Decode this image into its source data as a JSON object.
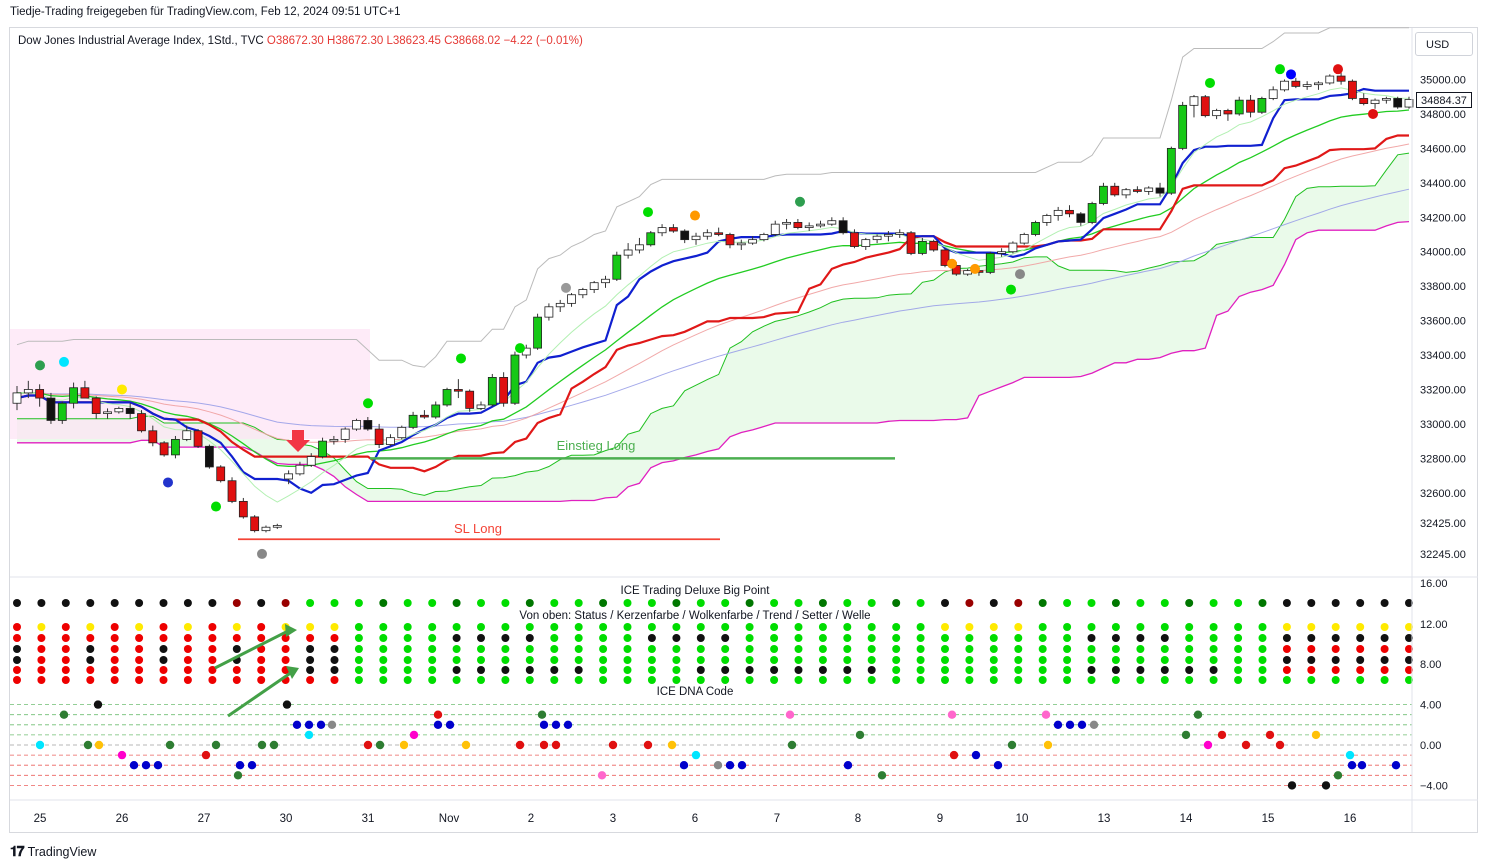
{
  "header": {
    "publisher": "Tiedje-Trading freigegeben für TradingView.com, Feb 12, 2024 09:51 UTC+1"
  },
  "legend": {
    "symbol": "Dow Jones Industrial Average Index, 1Std., TVC",
    "o": "O38672.30",
    "h": "H38672.30",
    "l": "L38623.45",
    "c": "C38668.02",
    "change": "−4.22 (−0.01%)"
  },
  "currency_button": "USD",
  "last_price_label": "34884.37",
  "brand": {
    "name": "TradingView",
    "logo": "tv-logo-icon"
  },
  "colors": {
    "bull": "#16c816",
    "bear": "#e01010",
    "tenkan": "#1020d0",
    "kijun": "#e01818",
    "cloud_bull": "#e6f9e6",
    "cloud_bear": "#fde3f5"
  },
  "chart_data": [
    {
      "type": "line",
      "title": "",
      "y_axis_ticks": [
        "35000.00",
        "34800.00",
        "34600.00",
        "34400.00",
        "34200.00",
        "34000.00",
        "33800.00",
        "33600.00",
        "33400.00",
        "33200.00",
        "33000.00",
        "32800.00",
        "32600.00",
        "32425.00",
        "32245.00"
      ],
      "x_axis_ticks": [
        "25",
        "26",
        "27",
        "30",
        "31",
        "Nov",
        "2",
        "3",
        "6",
        "7",
        "8",
        "9",
        "10",
        "13",
        "14",
        "15",
        "16"
      ],
      "ylim": [
        32150,
        35150
      ],
      "annotations": [
        {
          "text": "Einstieg Long",
          "y": 32800,
          "color": "#4caf50"
        },
        {
          "text": "SL Long",
          "y": 32330,
          "color": "#f44336"
        }
      ],
      "candles": [
        [
          33120,
          33220,
          33080,
          33180
        ],
        [
          33180,
          33250,
          33150,
          33200
        ],
        [
          33200,
          33230,
          33100,
          33150
        ],
        [
          33150,
          33180,
          33000,
          33020
        ],
        [
          33020,
          33130,
          33000,
          33120
        ],
        [
          33120,
          33240,
          33090,
          33210
        ],
        [
          33210,
          33250,
          33150,
          33150
        ],
        [
          33150,
          33160,
          33030,
          33060
        ],
        [
          33060,
          33090,
          33030,
          33070
        ],
        [
          33070,
          33100,
          33060,
          33090
        ],
        [
          33090,
          33120,
          33030,
          33060
        ],
        [
          33060,
          33080,
          32950,
          32960
        ],
        [
          32960,
          32990,
          32870,
          32890
        ],
        [
          32890,
          32900,
          32810,
          32820
        ],
        [
          32820,
          32930,
          32800,
          32910
        ],
        [
          32910,
          32990,
          32900,
          32960
        ],
        [
          32960,
          32970,
          32860,
          32870
        ],
        [
          32870,
          32880,
          32740,
          32750
        ],
        [
          32750,
          32760,
          32660,
          32670
        ],
        [
          32670,
          32690,
          32540,
          32550
        ],
        [
          32550,
          32570,
          32450,
          32460
        ],
        [
          32460,
          32470,
          32370,
          32380
        ],
        [
          32380,
          32410,
          32370,
          32400
        ],
        [
          32400,
          32420,
          32390,
          32410
        ],
        [
          32680,
          32730,
          32650,
          32710
        ],
        [
          32710,
          32780,
          32700,
          32760
        ],
        [
          32760,
          32830,
          32750,
          32810
        ],
        [
          32810,
          32920,
          32800,
          32900
        ],
        [
          32900,
          32930,
          32880,
          32910
        ],
        [
          32910,
          32980,
          32890,
          32970
        ],
        [
          32970,
          33030,
          32960,
          33020
        ],
        [
          33020,
          33040,
          32960,
          32970
        ],
        [
          32970,
          33000,
          32860,
          32880
        ],
        [
          32880,
          32940,
          32870,
          32920
        ],
        [
          32920,
          32990,
          32910,
          32980
        ],
        [
          32980,
          33070,
          32970,
          33050
        ],
        [
          33050,
          33080,
          33030,
          33040
        ],
        [
          33040,
          33130,
          33030,
          33110
        ],
        [
          33110,
          33210,
          33100,
          33200
        ],
        [
          33200,
          33260,
          33150,
          33190
        ],
        [
          33190,
          33200,
          33070,
          33090
        ],
        [
          33090,
          33130,
          33080,
          33110
        ],
        [
          33110,
          33290,
          33100,
          33270
        ],
        [
          33270,
          33300,
          33100,
          33120
        ],
        [
          33120,
          33420,
          33110,
          33400
        ],
        [
          33400,
          33460,
          33380,
          33440
        ],
        [
          33440,
          33640,
          33430,
          33620
        ],
        [
          33620,
          33700,
          33600,
          33680
        ],
        [
          33680,
          33720,
          33650,
          33700
        ],
        [
          33700,
          33760,
          33680,
          33750
        ],
        [
          33750,
          33790,
          33730,
          33780
        ],
        [
          33780,
          33830,
          33760,
          33820
        ],
        [
          33820,
          33860,
          33790,
          33840
        ],
        [
          33840,
          34000,
          33830,
          33980
        ],
        [
          33980,
          34050,
          33960,
          34010
        ],
        [
          34010,
          34080,
          33990,
          34040
        ],
        [
          34040,
          34120,
          34030,
          34110
        ],
        [
          34110,
          34160,
          34090,
          34140
        ],
        [
          34140,
          34160,
          34110,
          34120
        ],
        [
          34120,
          34130,
          34050,
          34070
        ],
        [
          34070,
          34110,
          34040,
          34090
        ],
        [
          34090,
          34130,
          34070,
          34110
        ],
        [
          34110,
          34140,
          34090,
          34100
        ],
        [
          34100,
          34110,
          34020,
          34040
        ],
        [
          34040,
          34070,
          34010,
          34050
        ],
        [
          34050,
          34090,
          34040,
          34070
        ],
        [
          34070,
          34110,
          34060,
          34100
        ],
        [
          34100,
          34180,
          34090,
          34160
        ],
        [
          34160,
          34190,
          34130,
          34170
        ],
        [
          34170,
          34190,
          34130,
          34140
        ],
        [
          34140,
          34170,
          34120,
          34150
        ],
        [
          34150,
          34180,
          34140,
          34160
        ],
        [
          34160,
          34200,
          34150,
          34180
        ],
        [
          34180,
          34200,
          34100,
          34110
        ],
        [
          34110,
          34130,
          34020,
          34030
        ],
        [
          34030,
          34080,
          34010,
          34070
        ],
        [
          34070,
          34100,
          34050,
          34090
        ],
        [
          34090,
          34120,
          34060,
          34100
        ],
        [
          34100,
          34130,
          34080,
          34110
        ],
        [
          34110,
          34120,
          33980,
          33990
        ],
        [
          33990,
          34080,
          33980,
          34060
        ],
        [
          34060,
          34070,
          34000,
          34010
        ],
        [
          34010,
          34020,
          33910,
          33920
        ],
        [
          33920,
          33940,
          33860,
          33870
        ],
        [
          33870,
          33900,
          33860,
          33890
        ],
        [
          33890,
          33900,
          33860,
          33880
        ],
        [
          33880,
          34000,
          33870,
          33990
        ],
        [
          33990,
          34020,
          33970,
          34000
        ],
        [
          34000,
          34060,
          33990,
          34050
        ],
        [
          34050,
          34110,
          34040,
          34100
        ],
        [
          34100,
          34180,
          34090,
          34170
        ],
        [
          34170,
          34220,
          34150,
          34210
        ],
        [
          34210,
          34260,
          34180,
          34240
        ],
        [
          34240,
          34270,
          34200,
          34220
        ],
        [
          34220,
          34230,
          34150,
          34170
        ],
        [
          34170,
          34290,
          34160,
          34280
        ],
        [
          34280,
          34400,
          34270,
          34380
        ],
        [
          34380,
          34400,
          34320,
          34330
        ],
        [
          34330,
          34370,
          34310,
          34360
        ],
        [
          34360,
          34380,
          34340,
          34350
        ],
        [
          34350,
          34380,
          34330,
          34370
        ],
        [
          34370,
          34400,
          34320,
          34340
        ],
        [
          34340,
          34610,
          34330,
          34600
        ],
        [
          34600,
          34870,
          34590,
          34850
        ],
        [
          34850,
          34910,
          34780,
          34900
        ],
        [
          34900,
          34910,
          34780,
          34790
        ],
        [
          34790,
          34830,
          34770,
          34820
        ],
        [
          34820,
          34830,
          34760,
          34800
        ],
        [
          34800,
          34900,
          34790,
          34880
        ],
        [
          34880,
          34910,
          34780,
          34810
        ],
        [
          34810,
          34900,
          34800,
          34890
        ],
        [
          34890,
          34960,
          34880,
          34940
        ],
        [
          34940,
          35000,
          34930,
          34990
        ],
        [
          34990,
          35010,
          34950,
          34960
        ],
        [
          34960,
          34990,
          34940,
          34970
        ],
        [
          34970,
          34990,
          34940,
          34980
        ],
        [
          34980,
          35030,
          34970,
          35020
        ],
        [
          35020,
          35040,
          34970,
          34990
        ],
        [
          34990,
          35000,
          34880,
          34890
        ],
        [
          34890,
          34920,
          34850,
          34860
        ],
        [
          34860,
          34890,
          34830,
          34880
        ],
        [
          34880,
          34900,
          34860,
          34890
        ],
        [
          34890,
          34900,
          34830,
          34840
        ],
        [
          34840,
          34900,
          34830,
          34884
        ]
      ]
    },
    {
      "type": "heatmap",
      "title": "ICE Trading Deluxe Big Point",
      "subtitle": "Von oben: Status / Kerzenfarbe / Wolkenfarbe / Trend / Setter / Welle",
      "y_axis_ticks": [
        "16.00",
        "12.00",
        "8.00"
      ],
      "ylim": [
        5,
        17
      ],
      "palette": {
        "g": "#00dd00",
        "G": "#007700",
        "r": "#ee0000",
        "R": "#990000",
        "k": "#111111",
        "y": "#ffea00"
      }
    },
    {
      "type": "scatter",
      "title": "ICE DNA Code",
      "y_axis_ticks": [
        "4.00",
        "0.00",
        "−4.00"
      ],
      "ylim": [
        -5,
        5
      ],
      "levels": [
        4,
        3,
        2,
        1,
        0,
        -1,
        -2,
        -3,
        -4
      ]
    }
  ]
}
